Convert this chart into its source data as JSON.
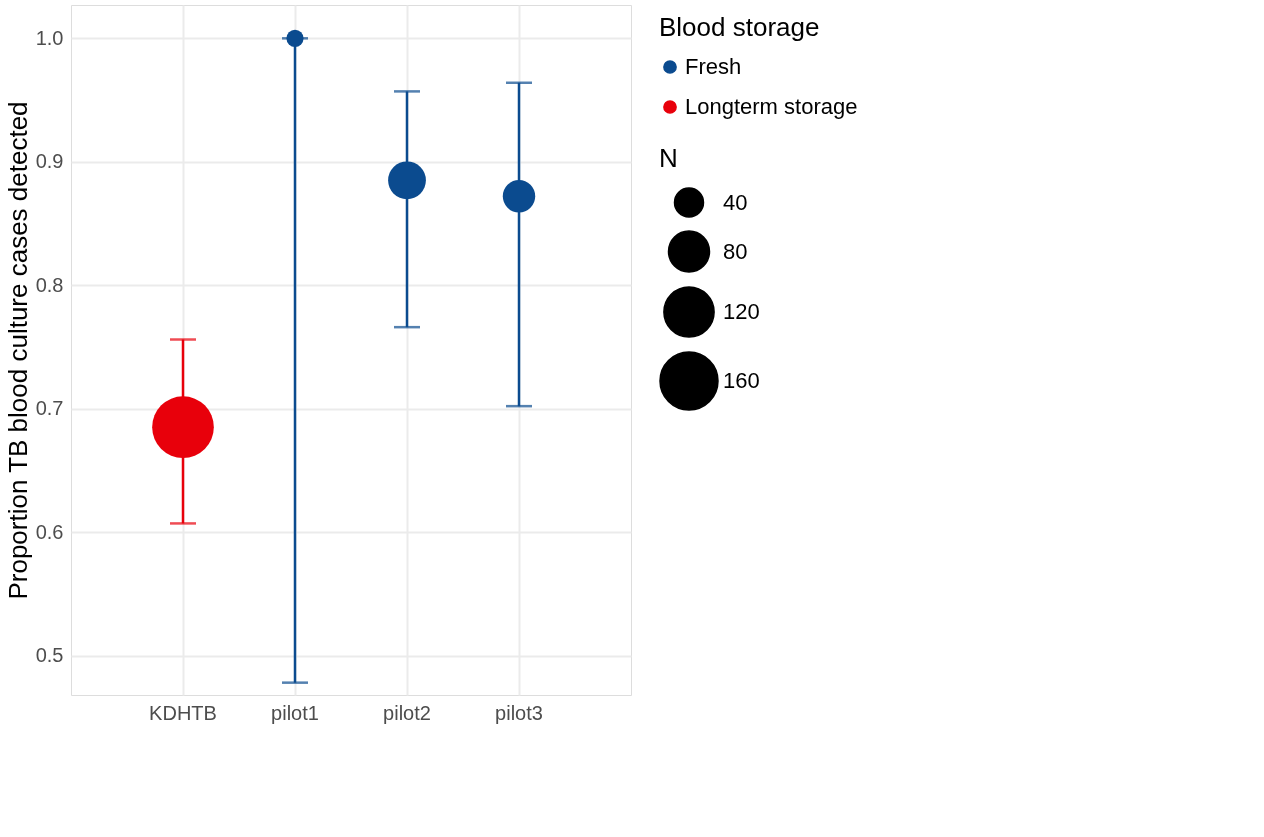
{
  "chart_data": {
    "type": "scatter",
    "ylabel": "Proportion TB blood culture cases detected",
    "legend_title": "Blood storage",
    "annotations": [
      "N"
    ],
    "categories": [
      "KDHTB",
      "pilot1",
      "pilot2",
      "pilot3"
    ],
    "series": [
      {
        "name": "Fresh",
        "color": "#0b4b8f",
        "values": [
          null,
          1.0,
          0.885,
          0.872
        ],
        "errors": [
          null,
          [
            0.478,
            1.0
          ],
          [
            0.766,
            0.957
          ],
          [
            0.702,
            0.964
          ]
        ],
        "sizes": [
          null,
          14,
          68,
          50
        ]
      },
      {
        "name": "Longterm storage",
        "color": "#e8000b",
        "values": [
          0.685,
          null,
          null,
          null
        ],
        "errors": [
          [
            0.607,
            0.756
          ],
          null,
          null,
          null
        ],
        "sizes": [
          181,
          null,
          null,
          null
        ]
      }
    ],
    "size_legend": [
      40,
      80,
      120,
      160
    ],
    "ylim": [
      0.468,
      1.027
    ],
    "yticks": [
      0.5,
      0.6,
      0.7,
      0.8,
      0.9,
      {
        "value": 1.0,
        "label": "1.0"
      }
    ],
    "grid": true,
    "legend": "right",
    "marker": "circle"
  }
}
